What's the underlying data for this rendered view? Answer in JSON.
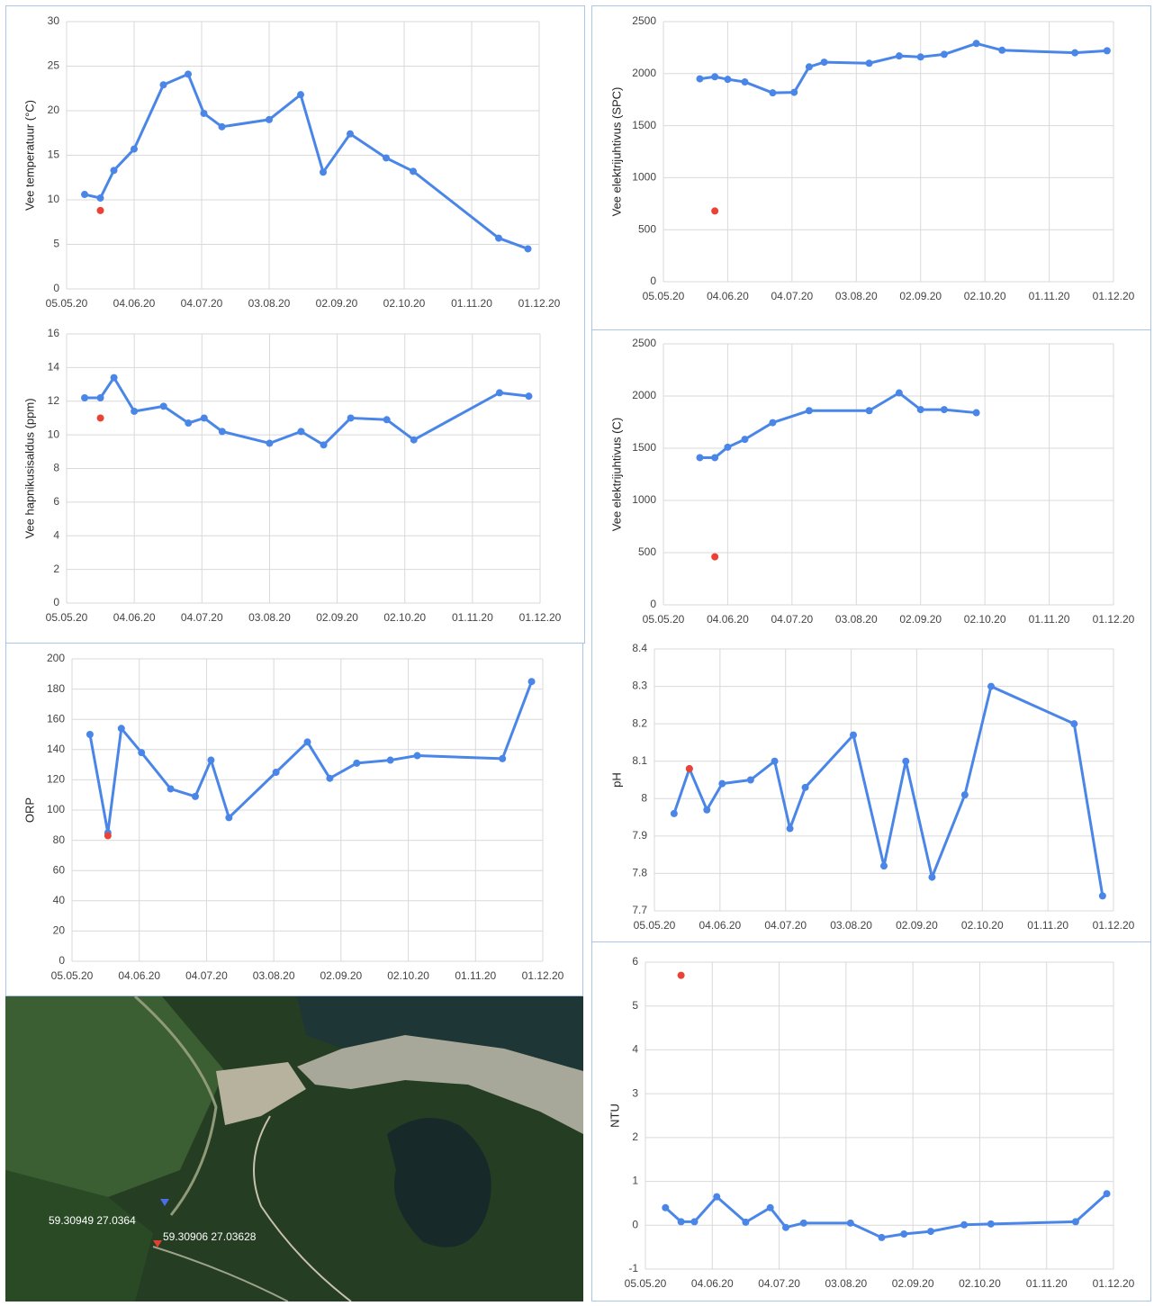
{
  "chart_data": [
    {
      "type": "line",
      "ylabel": "Vee temperatuur (°C)",
      "xlim": [
        "05.05.20",
        "01.12.20"
      ],
      "xticks": [
        "05.05.20",
        "04.06.20",
        "04.07.20",
        "03.08.20",
        "02.09.20",
        "02.10.20",
        "01.11.20",
        "01.12.20"
      ],
      "ylim": [
        0,
        30
      ],
      "yticks": [
        0,
        5,
        10,
        15,
        20,
        25,
        30
      ],
      "grid": true,
      "series": [
        {
          "color": "#4a86e8",
          "mode": "lines+markers",
          "x": [
            "13.05.20",
            "20.05.20",
            "26.05.20",
            "04.06.20",
            "17.06.20",
            "28.06.20",
            "05.07.20",
            "13.07.20",
            "03.08.20",
            "17.08.20",
            "27.08.20",
            "08.09.20",
            "24.09.20",
            "06.10.20",
            "13.11.20",
            "26.11.20"
          ],
          "values": [
            10.6,
            10.2,
            13.3,
            15.7,
            22.9,
            24.1,
            19.7,
            18.2,
            19.0,
            21.8,
            13.1,
            17.4,
            14.7,
            13.2,
            5.7,
            4.5
          ]
        },
        {
          "color": "#ea4335",
          "mode": "markers",
          "x": [
            "20.05.20"
          ],
          "values": [
            8.8
          ]
        }
      ]
    },
    {
      "type": "line",
      "ylabel": "Vee hapnikusisaldus (ppm)",
      "xlim": [
        "05.05.20",
        "01.12.20"
      ],
      "xticks": [
        "05.05.20",
        "04.06.20",
        "04.07.20",
        "03.08.20",
        "02.09.20",
        "02.10.20",
        "01.11.20",
        "01.12.20"
      ],
      "ylim": [
        0,
        16
      ],
      "yticks": [
        0,
        2,
        4,
        6,
        8,
        10,
        12,
        14,
        16
      ],
      "grid": true,
      "series": [
        {
          "color": "#4a86e8",
          "mode": "lines+markers",
          "x": [
            "13.05.20",
            "20.05.20",
            "26.05.20",
            "04.06.20",
            "17.06.20",
            "28.06.20",
            "05.07.20",
            "13.07.20",
            "03.08.20",
            "17.08.20",
            "27.08.20",
            "08.09.20",
            "24.09.20",
            "06.10.20",
            "13.11.20",
            "26.11.20"
          ],
          "values": [
            12.2,
            12.2,
            13.4,
            11.4,
            11.7,
            10.7,
            11.0,
            10.2,
            9.5,
            10.2,
            9.4,
            11.0,
            10.9,
            9.7,
            12.5,
            12.3
          ]
        },
        {
          "color": "#ea4335",
          "mode": "markers",
          "x": [
            "20.05.20"
          ],
          "values": [
            11.0
          ]
        }
      ]
    },
    {
      "type": "line",
      "ylabel": "ORP",
      "xlim": [
        "05.05.20",
        "01.12.20"
      ],
      "xticks": [
        "05.05.20",
        "04.06.20",
        "04.07.20",
        "03.08.20",
        "02.09.20",
        "02.10.20",
        "01.11.20",
        "01.12.20"
      ],
      "ylim": [
        0,
        200
      ],
      "yticks": [
        0,
        20,
        40,
        60,
        80,
        100,
        120,
        140,
        160,
        180,
        200
      ],
      "grid": true,
      "series": [
        {
          "color": "#4a86e8",
          "mode": "lines+markers",
          "x": [
            "13.05.20",
            "21.05.20",
            "27.05.20",
            "05.06.20",
            "18.06.20",
            "29.06.20",
            "06.07.20",
            "14.07.20",
            "04.08.20",
            "18.08.20",
            "28.08.20",
            "09.09.20",
            "24.09.20",
            "06.10.20",
            "13.11.20",
            "26.11.20"
          ],
          "values": [
            150,
            85,
            154,
            138,
            114,
            109,
            133,
            95,
            125,
            145,
            121,
            131,
            133,
            136,
            134,
            185
          ]
        },
        {
          "color": "#ea4335",
          "mode": "markers",
          "x": [
            "21.05.20"
          ],
          "values": [
            83
          ]
        }
      ]
    },
    {
      "type": "line",
      "ylabel": "Vee elektrijuhtivus (SPC)",
      "xlim": [
        "05.05.20",
        "01.12.20"
      ],
      "xticks": [
        "05.05.20",
        "04.06.20",
        "04.07.20",
        "03.08.20",
        "02.09.20",
        "02.10.20",
        "01.11.20",
        "01.12.20"
      ],
      "ylim": [
        0,
        2500
      ],
      "yticks": [
        0,
        500,
        1000,
        1500,
        2000,
        2500
      ],
      "grid": true,
      "series": [
        {
          "color": "#4a86e8",
          "mode": "lines+markers",
          "x": [
            "22.05.20",
            "29.05.20",
            "04.06.20",
            "12.06.20",
            "25.06.20",
            "05.07.20",
            "12.07.20",
            "19.07.20",
            "09.08.20",
            "23.08.20",
            "02.09.20",
            "13.09.20",
            "28.09.20",
            "10.10.20",
            "13.11.20",
            "28.11.20"
          ],
          "values": [
            1950,
            1970,
            1945,
            1920,
            1815,
            1820,
            2065,
            2110,
            2100,
            2170,
            2160,
            2185,
            2290,
            2225,
            2200,
            2220
          ]
        },
        {
          "color": "#ea4335",
          "mode": "markers",
          "x": [
            "29.05.20"
          ],
          "values": [
            680
          ]
        }
      ]
    },
    {
      "type": "line",
      "ylabel": "Vee elektrijuhtivus (C)",
      "xlim": [
        "05.05.20",
        "01.12.20"
      ],
      "xticks": [
        "05.05.20",
        "04.06.20",
        "04.07.20",
        "03.08.20",
        "02.09.20",
        "02.10.20",
        "01.11.20",
        "01.12.20"
      ],
      "ylim": [
        0,
        2500
      ],
      "yticks": [
        0,
        500,
        1000,
        1500,
        2000,
        2500
      ],
      "grid": true,
      "series": [
        {
          "color": "#4a86e8",
          "mode": "lines+markers",
          "x": [
            "22.05.20",
            "29.05.20",
            "04.06.20",
            "12.06.20",
            "25.06.20",
            "12.07.20",
            "09.08.20",
            "23.08.20",
            "02.09.20",
            "13.09.20",
            "28.09.20"
          ],
          "values": [
            1410,
            1410,
            1510,
            1585,
            1745,
            1860,
            1860,
            2030,
            1870,
            1870,
            1840
          ]
        },
        {
          "color": "#ea4335",
          "mode": "markers",
          "x": [
            "29.05.20"
          ],
          "values": [
            460
          ]
        }
      ]
    },
    {
      "type": "line",
      "ylabel": "pH",
      "xlim": [
        "05.05.20",
        "01.12.20"
      ],
      "xticks": [
        "05.05.20",
        "04.06.20",
        "04.07.20",
        "03.08.20",
        "02.09.20",
        "02.10.20",
        "01.11.20",
        "01.12.20"
      ],
      "ylim": [
        7.7,
        8.4
      ],
      "yticks": [
        7.7,
        7.8,
        7.9,
        8,
        8.1,
        8.2,
        8.3,
        8.4
      ],
      "grid": true,
      "series": [
        {
          "color": "#4a86e8",
          "mode": "lines+markers",
          "x": [
            "14.05.20",
            "21.05.20",
            "29.05.20",
            "05.06.20",
            "18.06.20",
            "29.06.20",
            "06.07.20",
            "13.07.20",
            "04.08.20",
            "18.08.20",
            "28.08.20",
            "09.09.20",
            "24.09.20",
            "06.10.20",
            "13.11.20",
            "26.11.20"
          ],
          "values": [
            7.96,
            8.08,
            7.97,
            8.04,
            8.05,
            8.1,
            7.92,
            8.03,
            8.17,
            7.82,
            8.1,
            7.79,
            8.01,
            8.3,
            8.2,
            7.74
          ]
        },
        {
          "color": "#ea4335",
          "mode": "markers",
          "x": [
            "21.05.20"
          ],
          "values": [
            8.08
          ]
        }
      ]
    },
    {
      "type": "line",
      "ylabel": "NTU",
      "xlim": [
        "05.05.20",
        "01.12.20"
      ],
      "xticks": [
        "05.05.20",
        "04.06.20",
        "04.07.20",
        "03.08.20",
        "02.09.20",
        "02.10.20",
        "01.11.20",
        "01.12.20"
      ],
      "ylim": [
        -1,
        6
      ],
      "yticks": [
        -1,
        0,
        1,
        2,
        3,
        4,
        5,
        6
      ],
      "grid": true,
      "series": [
        {
          "color": "#4a86e8",
          "mode": "lines+markers",
          "x": [
            "14.05.20",
            "21.05.20",
            "27.05.20",
            "06.06.20",
            "19.06.20",
            "30.06.20",
            "07.07.20",
            "15.07.20",
            "05.08.20",
            "19.08.20",
            "29.08.20",
            "10.09.20",
            "25.09.20",
            "07.10.20",
            "14.11.20",
            "28.11.20"
          ],
          "values": [
            0.4,
            0.08,
            0.08,
            0.65,
            0.07,
            0.4,
            -0.05,
            0.05,
            0.05,
            -0.28,
            -0.2,
            -0.14,
            0.01,
            0.03,
            0.08,
            0.72
          ]
        },
        {
          "color": "#ea4335",
          "mode": "markers",
          "x": [
            "21.05.20"
          ],
          "values": [
            5.7
          ]
        }
      ]
    }
  ],
  "map": {
    "labels": [
      "59.30949 27.0364",
      "59.30906 27.03628"
    ]
  }
}
